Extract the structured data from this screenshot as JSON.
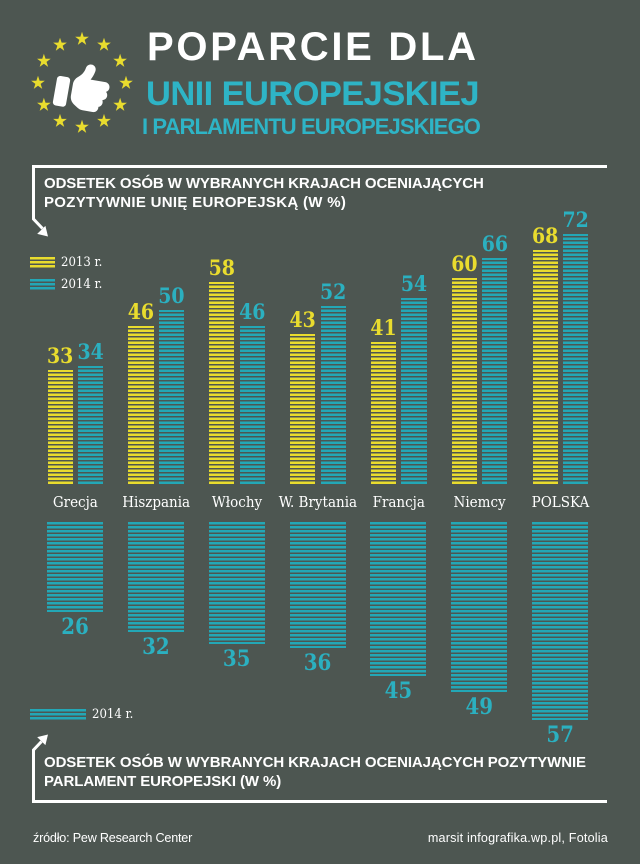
{
  "colors": {
    "background": "#4d5651",
    "yellow": "#e9dc2e",
    "teal": "#23a7b6",
    "teal_bright": "#2eb4c6",
    "white": "#ffffff"
  },
  "header": {
    "logo": "eu-stars-thumbs-up",
    "title_line1": "POPARCIE DLA",
    "title_line2": "UNII EUROPEJSKIEJ",
    "title_line3": "I PARLAMENTU EUROPEJSKIEGO"
  },
  "section_eu": {
    "heading_line1": "ODSETEK OSÓB W WYBRANYCH KRAJACH OCENIAJĄCYCH",
    "heading_line2": "POZYTYWNIE UNIĘ EUROPEJSKĄ (W %)",
    "legend": [
      {
        "label": "2013 r.",
        "color": "yellow"
      },
      {
        "label": "2014 r.",
        "color": "teal"
      }
    ]
  },
  "section_ep": {
    "heading_line1": "ODSETEK OSÓB W WYBRANYCH KRAJACH OCENIAJĄCYCH POZYTYWNIE",
    "heading_line2": "PARLAMENT EUROPEJSKI (W %)",
    "legend": [
      {
        "label": "2014 r.",
        "color": "teal"
      }
    ]
  },
  "footer": {
    "source": "źródło: Pew Research Center",
    "credits": "marsit infografika.wp.pl, Fotolia"
  },
  "chart_data": [
    {
      "type": "bar",
      "title": "ODSETEK OSÓB W WYBRANYCH KRAJACH OCENIAJĄCYCH POZYTYWNIE UNIĘ EUROPEJSKĄ (W %)",
      "categories": [
        "Grecja",
        "Hiszpania",
        "Włochy",
        "W. Brytania",
        "Francja",
        "Niemcy",
        "POLSKA"
      ],
      "series": [
        {
          "name": "2013 r.",
          "values": [
            33,
            46,
            58,
            43,
            41,
            60,
            68
          ]
        },
        {
          "name": "2014 r.",
          "values": [
            34,
            50,
            46,
            52,
            54,
            66,
            72
          ]
        }
      ],
      "ylim": [
        0,
        80
      ],
      "legend_position": "top-left",
      "grid": false,
      "direction": "up"
    },
    {
      "type": "bar",
      "title": "ODSETEK OSÓB W WYBRANYCH KRAJACH OCENIAJĄCYCH POZYTYWNIE PARLAMENT EUROPEJSKI (W %)",
      "categories": [
        "Grecja",
        "Hiszpania",
        "Włochy",
        "W. Brytania",
        "Francja",
        "Niemcy",
        "POLSKA"
      ],
      "series": [
        {
          "name": "2014 r.",
          "values": [
            26,
            32,
            35,
            36,
            45,
            49,
            57
          ]
        }
      ],
      "ylim": [
        0,
        80
      ],
      "legend_position": "bottom-left",
      "grid": false,
      "direction": "down"
    }
  ]
}
